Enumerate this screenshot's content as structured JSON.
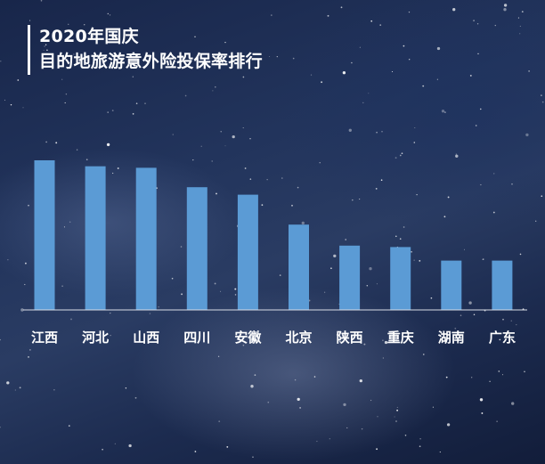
{
  "header": {
    "title_line1": "2020年国庆",
    "title_line2": "目的地旅游意外险投保率排行"
  },
  "colors": {
    "bar": "#5b9bd5",
    "axis": "#d9dde6",
    "text": "#ffffff"
  },
  "chart_data": {
    "type": "bar",
    "categories": [
      "江西",
      "河北",
      "山西",
      "四川",
      "安徽",
      "北京",
      "陕西",
      "重庆",
      "湖南",
      "广东"
    ],
    "values": [
      100,
      96,
      95,
      82,
      77,
      57,
      43,
      42,
      33,
      33
    ],
    "ylim": [
      0,
      100
    ],
    "grid": false,
    "legend": "none"
  }
}
